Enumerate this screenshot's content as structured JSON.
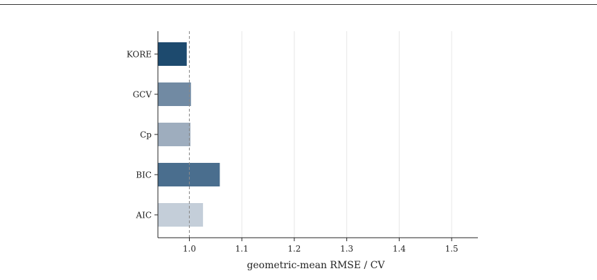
{
  "chart_data": {
    "type": "bar",
    "orientation": "horizontal",
    "categories": [
      "KORE",
      "GCV",
      "Cp",
      "BIC",
      "AIC"
    ],
    "values": [
      0.995,
      1.003,
      1.002,
      1.058,
      1.026
    ],
    "colors": [
      "#1d4a6e",
      "#718aa3",
      "#9eadbe",
      "#4a6e8e",
      "#c4ced9"
    ],
    "xlabel": "geometric-mean RMSE / CV",
    "ylabel": "",
    "xlim": [
      0.94,
      1.55
    ],
    "xticks": [
      1.0,
      1.1,
      1.2,
      1.3,
      1.4,
      1.5
    ],
    "xtick_labels": [
      "1.0",
      "1.1",
      "1.2",
      "1.3",
      "1.4",
      "1.5"
    ],
    "reference_line": 1.0,
    "grid": "vertical",
    "legend": "none"
  }
}
